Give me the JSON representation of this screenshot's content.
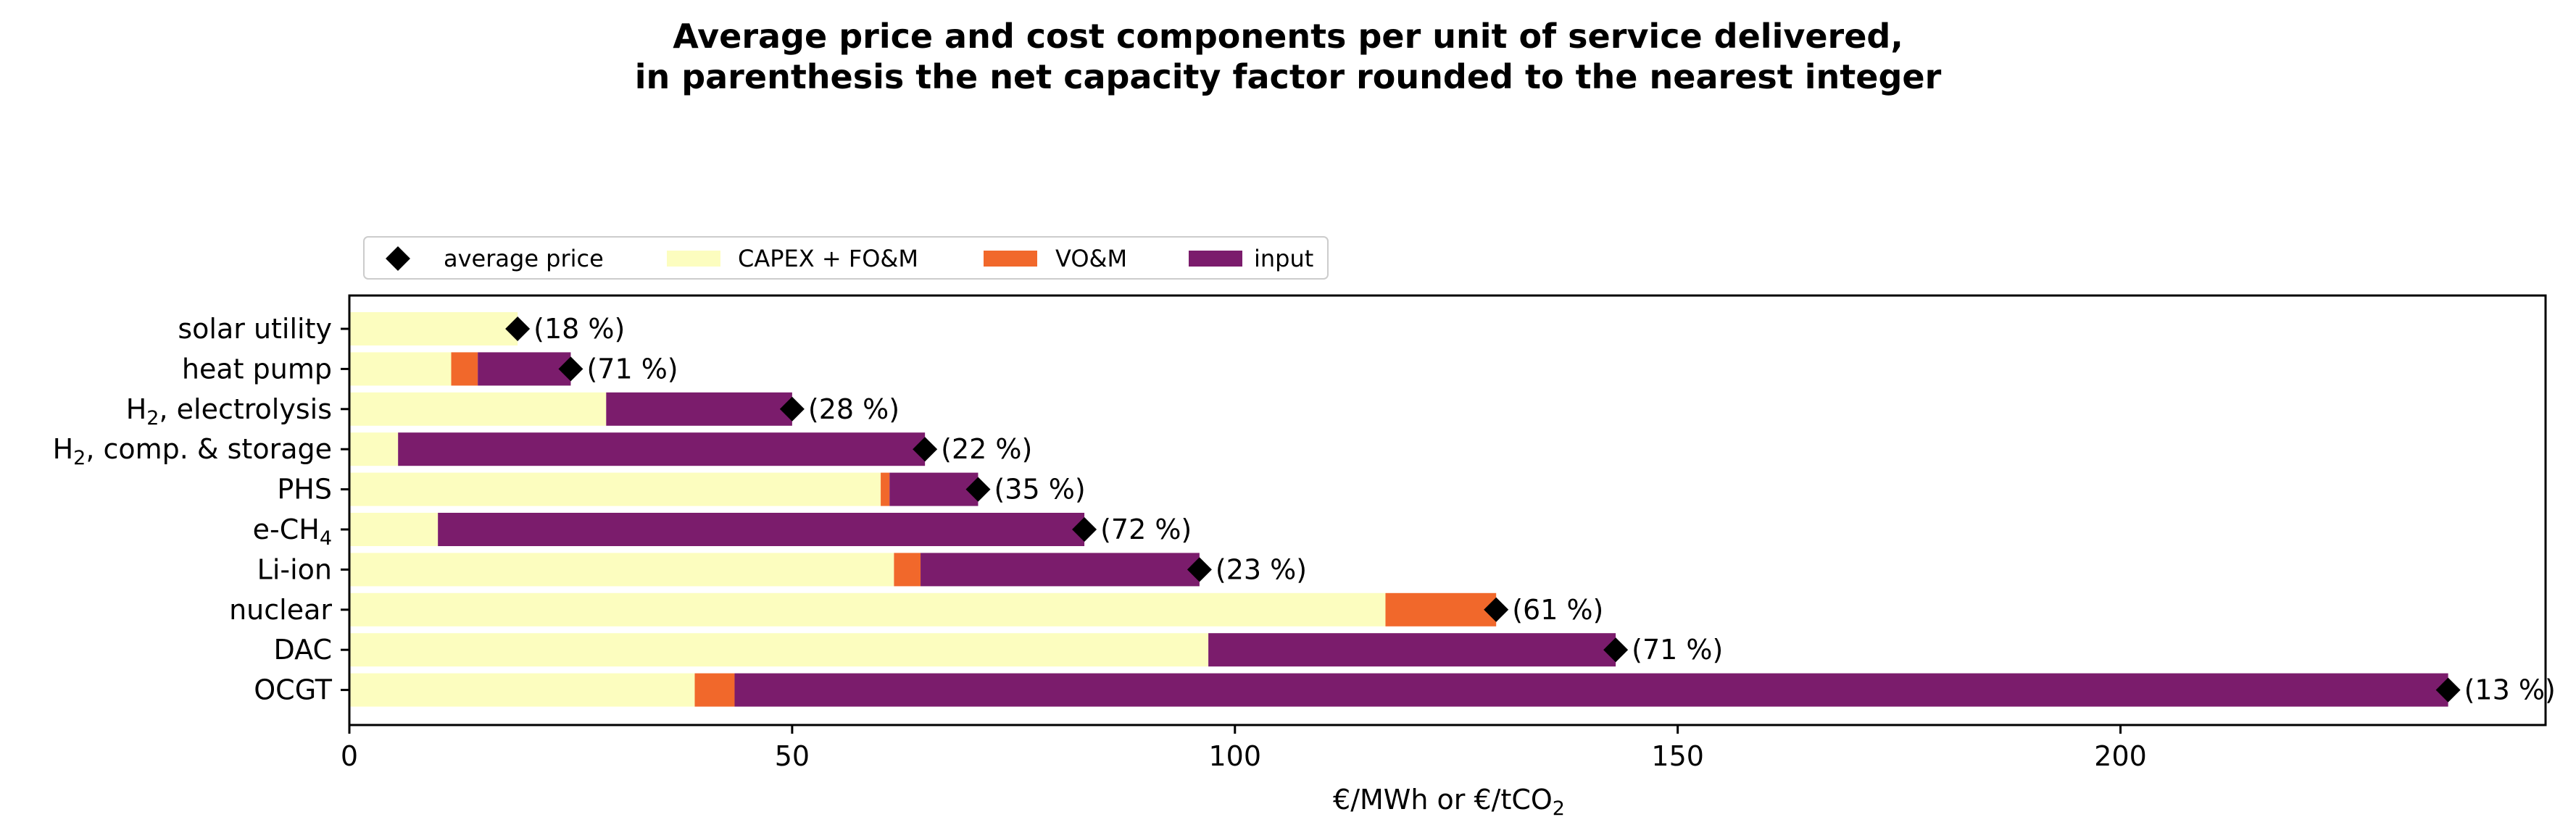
{
  "chart_data": {
    "type": "bar",
    "orientation": "horizontal",
    "stacked": true,
    "title_line1": "Average price and cost components per unit of service delivered,",
    "title_line2": "in parenthesis the net capacity factor rounded to the nearest integer",
    "xlabel": "€/MWh or €/tCO",
    "xlabel_sub": "2",
    "xlim": [
      0,
      248
    ],
    "xticks": [
      0,
      50,
      100,
      150,
      200
    ],
    "grid": false,
    "legend_placement": "top-left, above plot",
    "legend": {
      "average_price": "average price",
      "capex": "CAPEX + FO&M",
      "vom": "VO&M",
      "input": "input"
    },
    "colors": {
      "capex": "#fcfdbf",
      "vom": "#f1682b",
      "input": "#7b1c6c",
      "marker": "#000000"
    },
    "categories": [
      {
        "label": "solar utility",
        "sub": "",
        "post": "",
        "capex": 19,
        "vom": 0,
        "input": 0,
        "price": 19,
        "cf_label": "(18 %)"
      },
      {
        "label": "heat pump",
        "sub": "",
        "post": "",
        "capex": 11.5,
        "vom": 3,
        "input": 10.5,
        "price": 25,
        "cf_label": "(71 %)"
      },
      {
        "label": "H",
        "sub": "2",
        "post": ", electrolysis",
        "capex": 29,
        "vom": 0,
        "input": 21,
        "price": 50,
        "cf_label": "(28 %)"
      },
      {
        "label": "H",
        "sub": "2",
        "post": ", comp. & storage",
        "capex": 5.5,
        "vom": 0,
        "input": 59.5,
        "price": 65,
        "cf_label": "(22 %)"
      },
      {
        "label": "PHS",
        "sub": "",
        "post": "",
        "capex": 60,
        "vom": 1,
        "input": 10,
        "price": 71,
        "cf_label": "(35 %)"
      },
      {
        "label": "e-CH",
        "sub": "4",
        "post": "",
        "capex": 10,
        "vom": 0,
        "input": 73,
        "price": 83,
        "cf_label": "(72 %)"
      },
      {
        "label": "Li-ion",
        "sub": "",
        "post": "",
        "capex": 61.5,
        "vom": 3,
        "input": 31.5,
        "price": 96,
        "cf_label": "(23 %)"
      },
      {
        "label": "nuclear",
        "sub": "",
        "post": "",
        "capex": 117,
        "vom": 12.5,
        "input": 0,
        "price": 129.5,
        "cf_label": "(61 %)"
      },
      {
        "label": "DAC",
        "sub": "",
        "post": "",
        "capex": 97,
        "vom": 0,
        "input": 46,
        "price": 143,
        "cf_label": "(71 %)"
      },
      {
        "label": "OCGT",
        "sub": "",
        "post": "",
        "capex": 39,
        "vom": 4.5,
        "input": 193.5,
        "price": 237,
        "cf_label": "(13 %)"
      }
    ]
  }
}
